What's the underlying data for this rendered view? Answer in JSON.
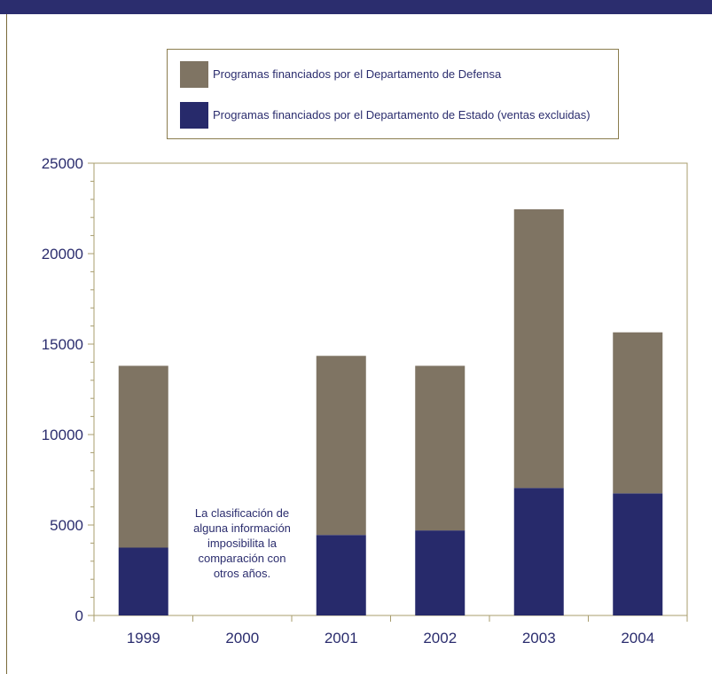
{
  "colors": {
    "header_bar": "#2b2d6e",
    "defensa": "#7f7463",
    "estado": "#272a6b",
    "axis": "#a89d6e",
    "text": "#2b2d6e"
  },
  "chart_data": {
    "type": "bar",
    "stacked": true,
    "title": "",
    "xlabel": "",
    "ylabel": "",
    "categories": [
      "1999",
      "2000",
      "2001",
      "2002",
      "2003",
      "2004"
    ],
    "ylim": [
      0,
      25000
    ],
    "yticks": [
      "0",
      "5000",
      "10000",
      "15000",
      "20000",
      "25000"
    ],
    "grid": false,
    "legend_position": "top-center",
    "series": [
      {
        "name": "Programas financiados por el Departamento de Estado (ventas excluidas)",
        "color": "#272a6b",
        "values": [
          3750,
          null,
          4450,
          4700,
          7050,
          6750
        ]
      },
      {
        "name": "Programas financiados por el Departamento de Defensa",
        "color": "#7f7463",
        "values": [
          10050,
          null,
          9900,
          9100,
          15400,
          8900
        ]
      }
    ],
    "annotation": "La clasificación de alguna información imposibilita la comparación con otros años."
  }
}
